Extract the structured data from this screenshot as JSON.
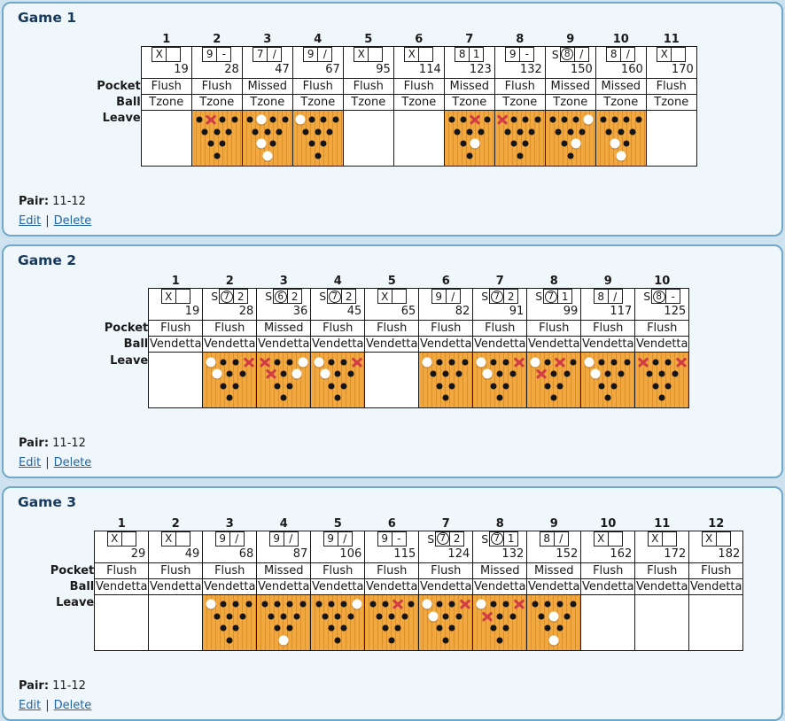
{
  "labels": {
    "pocket": "Pocket",
    "ball": "Ball",
    "leave": "Leave",
    "pair_label": "Pair",
    "edit": "Edit",
    "delete": "Delete",
    "separator": "|"
  },
  "colors": {
    "page_bg": "#CFE2EF",
    "panel_bg": "#F0F7FB",
    "panel_border": "#6FA8C9",
    "title_color": "#17395D",
    "link_color": "#2265A5",
    "lane_orange": "#F2A840",
    "lane_stripe": "#DB9128",
    "pin_downed": "#151515",
    "pin_converted": "#FFFFFF",
    "pin_missed_x": "#D03B45",
    "cell_border": "#1A1A1A",
    "cell_bg": "#FFFFFF"
  },
  "games": [
    {
      "title": "Game 1",
      "pair": "11-12",
      "frames": [
        {
          "num": "1",
          "split": false,
          "ball1": "X",
          "ball1_circled": false,
          "ball2": "",
          "total": "19",
          "pocket": "Flush",
          "ball": "Tzone",
          "leave": null
        },
        {
          "num": "2",
          "split": false,
          "ball1": "9",
          "ball1_circled": false,
          "ball2": "-",
          "total": "28",
          "pocket": "Flush",
          "ball": "Tzone",
          "leave": {
            "converted": [],
            "missed": [
              8
            ]
          }
        },
        {
          "num": "3",
          "split": false,
          "ball1": "7",
          "ball1_circled": false,
          "ball2": "/",
          "total": "47",
          "pocket": "Missed",
          "ball": "Tzone",
          "leave": {
            "converted": [
              8,
              2,
              1
            ],
            "missed": []
          }
        },
        {
          "num": "4",
          "split": false,
          "ball1": "9",
          "ball1_circled": false,
          "ball2": "/",
          "total": "67",
          "pocket": "Flush",
          "ball": "Tzone",
          "leave": {
            "converted": [
              7
            ],
            "missed": []
          }
        },
        {
          "num": "5",
          "split": false,
          "ball1": "X",
          "ball1_circled": false,
          "ball2": "",
          "total": "95",
          "pocket": "Flush",
          "ball": "Tzone",
          "leave": null
        },
        {
          "num": "6",
          "split": false,
          "ball1": "X",
          "ball1_circled": false,
          "ball2": "",
          "total": "114",
          "pocket": "Flush",
          "ball": "Tzone",
          "leave": null
        },
        {
          "num": "7",
          "split": false,
          "ball1": "8",
          "ball1_circled": false,
          "ball2": "1",
          "total": "123",
          "pocket": "Missed",
          "ball": "Tzone",
          "leave": {
            "converted": [
              3
            ],
            "missed": [
              9
            ]
          }
        },
        {
          "num": "8",
          "split": false,
          "ball1": "9",
          "ball1_circled": false,
          "ball2": "-",
          "total": "132",
          "pocket": "Flush",
          "ball": "Tzone",
          "leave": {
            "converted": [],
            "missed": [
              7
            ]
          }
        },
        {
          "num": "9",
          "split": true,
          "ball1": "8",
          "ball1_circled": true,
          "ball2": "/",
          "total": "150",
          "pocket": "Missed",
          "ball": "Tzone",
          "leave": {
            "converted": [
              10,
              3
            ],
            "missed": []
          }
        },
        {
          "num": "10",
          "split": false,
          "ball1": "8",
          "ball1_circled": false,
          "ball2": "/",
          "total": "160",
          "pocket": "Missed",
          "ball": "Tzone",
          "leave": {
            "converted": [
              2,
              1
            ],
            "missed": []
          }
        },
        {
          "num": "11",
          "split": false,
          "ball1": "X",
          "ball1_circled": false,
          "ball2": "",
          "total": "170",
          "pocket": "Flush",
          "ball": "Tzone",
          "leave": null
        }
      ]
    },
    {
      "title": "Game 2",
      "pair": "11-12",
      "frames": [
        {
          "num": "1",
          "split": false,
          "ball1": "X",
          "ball1_circled": false,
          "ball2": "",
          "total": "19",
          "pocket": "Flush",
          "ball": "Vendetta",
          "leave": null
        },
        {
          "num": "2",
          "split": true,
          "ball1": "7",
          "ball1_circled": true,
          "ball2": "2",
          "total": "28",
          "pocket": "Flush",
          "ball": "Vendetta",
          "leave": {
            "converted": [
              7,
              4
            ],
            "missed": [
              10
            ]
          }
        },
        {
          "num": "3",
          "split": true,
          "ball1": "6",
          "ball1_circled": true,
          "ball2": "2",
          "total": "36",
          "pocket": "Missed",
          "ball": "Vendetta",
          "leave": {
            "converted": [
              10,
              6
            ],
            "missed": [
              7,
              4
            ]
          }
        },
        {
          "num": "4",
          "split": true,
          "ball1": "7",
          "ball1_circled": true,
          "ball2": "2",
          "total": "45",
          "pocket": "Flush",
          "ball": "Vendetta",
          "leave": {
            "converted": [
              7,
              4
            ],
            "missed": [
              10
            ]
          }
        },
        {
          "num": "5",
          "split": false,
          "ball1": "X",
          "ball1_circled": false,
          "ball2": "",
          "total": "65",
          "pocket": "Flush",
          "ball": "Vendetta",
          "leave": null
        },
        {
          "num": "6",
          "split": false,
          "ball1": "9",
          "ball1_circled": false,
          "ball2": "/",
          "total": "82",
          "pocket": "Flush",
          "ball": "Vendetta",
          "leave": {
            "converted": [
              7
            ],
            "missed": []
          }
        },
        {
          "num": "7",
          "split": true,
          "ball1": "7",
          "ball1_circled": true,
          "ball2": "2",
          "total": "91",
          "pocket": "Flush",
          "ball": "Vendetta",
          "leave": {
            "converted": [
              7,
              4
            ],
            "missed": [
              10
            ]
          }
        },
        {
          "num": "8",
          "split": true,
          "ball1": "7",
          "ball1_circled": true,
          "ball2": "1",
          "total": "99",
          "pocket": "Flush",
          "ball": "Vendetta",
          "leave": {
            "converted": [
              7
            ],
            "missed": [
              9,
              4
            ]
          }
        },
        {
          "num": "9",
          "split": false,
          "ball1": "8",
          "ball1_circled": false,
          "ball2": "/",
          "total": "117",
          "pocket": "Flush",
          "ball": "Vendetta",
          "leave": {
            "converted": [
              7,
              4
            ],
            "missed": []
          }
        },
        {
          "num": "10",
          "split": true,
          "ball1": "8",
          "ball1_circled": true,
          "ball2": "-",
          "total": "125",
          "pocket": "Flush",
          "ball": "Vendetta",
          "leave": {
            "converted": [],
            "missed": [
              7,
              10
            ]
          }
        }
      ]
    },
    {
      "title": "Game 3",
      "pair": "11-12",
      "frames": [
        {
          "num": "1",
          "split": false,
          "ball1": "X",
          "ball1_circled": false,
          "ball2": "",
          "total": "29",
          "pocket": "Flush",
          "ball": "Vendetta",
          "leave": null
        },
        {
          "num": "2",
          "split": false,
          "ball1": "X",
          "ball1_circled": false,
          "ball2": "",
          "total": "49",
          "pocket": "Flush",
          "ball": "Vendetta",
          "leave": null
        },
        {
          "num": "3",
          "split": false,
          "ball1": "9",
          "ball1_circled": false,
          "ball2": "/",
          "total": "68",
          "pocket": "Flush",
          "ball": "Vendetta",
          "leave": {
            "converted": [
              7
            ],
            "missed": []
          }
        },
        {
          "num": "4",
          "split": false,
          "ball1": "9",
          "ball1_circled": false,
          "ball2": "/",
          "total": "87",
          "pocket": "Missed",
          "ball": "Vendetta",
          "leave": {
            "converted": [
              1
            ],
            "missed": []
          }
        },
        {
          "num": "5",
          "split": false,
          "ball1": "9",
          "ball1_circled": false,
          "ball2": "/",
          "total": "106",
          "pocket": "Flush",
          "ball": "Vendetta",
          "leave": {
            "converted": [
              10
            ],
            "missed": []
          }
        },
        {
          "num": "6",
          "split": false,
          "ball1": "9",
          "ball1_circled": false,
          "ball2": "-",
          "total": "115",
          "pocket": "Flush",
          "ball": "Vendetta",
          "leave": {
            "converted": [],
            "missed": [
              9
            ]
          }
        },
        {
          "num": "7",
          "split": true,
          "ball1": "7",
          "ball1_circled": true,
          "ball2": "2",
          "total": "124",
          "pocket": "Flush",
          "ball": "Vendetta",
          "leave": {
            "converted": [
              7,
              4
            ],
            "missed": [
              10
            ]
          }
        },
        {
          "num": "8",
          "split": true,
          "ball1": "7",
          "ball1_circled": true,
          "ball2": "1",
          "total": "132",
          "pocket": "Missed",
          "ball": "Vendetta",
          "leave": {
            "converted": [
              7
            ],
            "missed": [
              10,
              4
            ]
          }
        },
        {
          "num": "9",
          "split": false,
          "ball1": "8",
          "ball1_circled": false,
          "ball2": "/",
          "total": "152",
          "pocket": "Missed",
          "ball": "Vendetta",
          "leave": {
            "converted": [
              5,
              1
            ],
            "missed": []
          }
        },
        {
          "num": "10",
          "split": false,
          "ball1": "X",
          "ball1_circled": false,
          "ball2": "",
          "total": "162",
          "pocket": "Flush",
          "ball": "Vendetta",
          "leave": null
        },
        {
          "num": "11",
          "split": false,
          "ball1": "X",
          "ball1_circled": false,
          "ball2": "",
          "total": "172",
          "pocket": "Flush",
          "ball": "Vendetta",
          "leave": null
        },
        {
          "num": "12",
          "split": false,
          "ball1": "X",
          "ball1_circled": false,
          "ball2": "",
          "total": "182",
          "pocket": "Flush",
          "ball": "Vendetta",
          "leave": null
        }
      ]
    }
  ]
}
